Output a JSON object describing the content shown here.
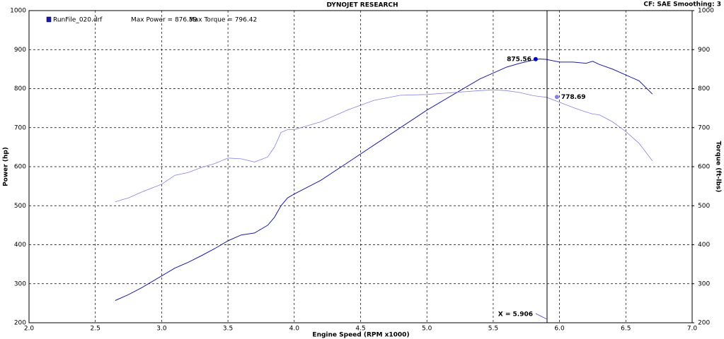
{
  "chart_data": {
    "type": "line",
    "title": "DYNOJET RESEARCH",
    "subtitle": "CF: SAE  Smoothing: 3",
    "legend_file": "RunFile_020.drf",
    "x_label": "Engine Speed (RPM x1000)",
    "y_label": "Power (hp)",
    "y2_label": "Torque (ft-lbs)",
    "x": [
      2.65,
      2.75,
      2.85,
      3.0,
      3.1,
      3.2,
      3.3,
      3.4,
      3.5,
      3.6,
      3.7,
      3.8,
      3.85,
      3.9,
      3.95,
      4.0,
      4.2,
      4.4,
      4.6,
      4.8,
      5.0,
      5.2,
      5.4,
      5.5,
      5.6,
      5.7,
      5.8,
      5.85,
      5.9,
      6.0,
      6.1,
      6.2,
      6.25,
      6.3,
      6.4,
      6.5,
      6.6,
      6.7
    ],
    "series": [
      {
        "name": "Max Power = 876.39",
        "color": "#1c1ca6",
        "values": [
          257,
          272,
          290,
          320,
          340,
          355,
          372,
          390,
          410,
          425,
          430,
          450,
          470,
          500,
          520,
          530,
          565,
          610,
          655,
          700,
          745,
          785,
          825,
          840,
          855,
          865,
          873,
          876,
          875,
          868,
          868,
          865,
          870,
          862,
          850,
          835,
          820,
          786
        ]
      },
      {
        "name": "Max Torque = 796.42",
        "color": "#8484e0",
        "axis": "y2",
        "values": [
          510,
          520,
          535,
          555,
          578,
          585,
          598,
          608,
          622,
          620,
          612,
          625,
          650,
          688,
          695,
          695,
          715,
          745,
          770,
          783,
          785,
          790,
          795,
          797,
          795,
          790,
          782,
          780,
          778,
          765,
          752,
          740,
          735,
          733,
          715,
          690,
          660,
          615
        ]
      }
    ],
    "markers": [
      {
        "x": 5.82,
        "value": 875.56,
        "color": "#0000c0"
      },
      {
        "x": 5.98,
        "value": 778.69,
        "color": "#8484e0"
      }
    ],
    "cursor": {
      "x": 5.906,
      "label": "X = 5.906"
    },
    "xlim": [
      2.0,
      7.0
    ],
    "xticks": [
      {
        "value": 2.0,
        "label": "2.0"
      },
      2.5,
      {
        "value": 3.0,
        "label": "3.0"
      },
      3.5,
      {
        "value": 4.0,
        "label": "4.0"
      },
      4.5,
      {
        "value": 5.0,
        "label": "5.0"
      },
      5.5,
      {
        "value": 6.0,
        "label": "6.0"
      },
      6.5,
      {
        "value": 7.0,
        "label": "7.0"
      }
    ],
    "ylim": [
      200,
      1000
    ],
    "yticks": [
      200,
      300,
      400,
      500,
      600,
      700,
      800,
      900,
      1000
    ],
    "y2lim": [
      200,
      1000
    ],
    "y2ticks": [
      200,
      300,
      400,
      500,
      600,
      700,
      800,
      900,
      1000
    ],
    "grid": true
  }
}
